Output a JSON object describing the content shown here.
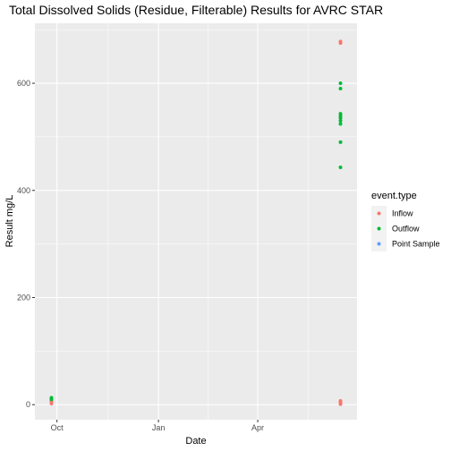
{
  "chart_data": {
    "type": "scatter",
    "title": "Total Dissolved Solids (Residue, Filterable) Results for AVRC STAR",
    "xlabel": "Date",
    "ylabel": "Result mg/L",
    "x_axis": {
      "kind": "date",
      "range": [
        "2020-09-11",
        "2021-06-30"
      ],
      "ticks": [
        {
          "date": "2020-10-01",
          "label": "Oct"
        },
        {
          "date": "2021-01-01",
          "label": "Jan"
        },
        {
          "date": "2021-04-01",
          "label": "Apr"
        }
      ]
    },
    "y_axis": {
      "range": [
        -28,
        712
      ],
      "ticks": [
        0,
        200,
        400,
        600
      ]
    },
    "grid": true,
    "legend": {
      "title": "event.type",
      "placement": "right",
      "entries": [
        {
          "name": "Inflow",
          "color": "#F8766D"
        },
        {
          "name": "Outflow",
          "color": "#00BA38"
        },
        {
          "name": "Point Sample",
          "color": "#619CFF"
        }
      ]
    },
    "series": [
      {
        "name": "Inflow",
        "color": "#F8766D",
        "points": [
          {
            "x": "2020-09-26",
            "y": 2
          },
          {
            "x": "2020-09-26",
            "y": 5
          },
          {
            "x": "2020-09-26",
            "y": 8
          },
          {
            "x": "2021-06-15",
            "y": 1
          },
          {
            "x": "2021-06-15",
            "y": 4
          },
          {
            "x": "2021-06-15",
            "y": 7
          },
          {
            "x": "2021-06-15",
            "y": 675
          },
          {
            "x": "2021-06-15",
            "y": 678
          }
        ]
      },
      {
        "name": "Outflow",
        "color": "#00BA38",
        "points": [
          {
            "x": "2020-09-26",
            "y": 10
          },
          {
            "x": "2020-09-26",
            "y": 13
          },
          {
            "x": "2021-06-15",
            "y": 600
          },
          {
            "x": "2021-06-15",
            "y": 590
          },
          {
            "x": "2021-06-15",
            "y": 543
          },
          {
            "x": "2021-06-15",
            "y": 539
          },
          {
            "x": "2021-06-15",
            "y": 535
          },
          {
            "x": "2021-06-15",
            "y": 530
          },
          {
            "x": "2021-06-15",
            "y": 524
          },
          {
            "x": "2021-06-15",
            "y": 490
          },
          {
            "x": "2021-06-15",
            "y": 443
          }
        ]
      },
      {
        "name": "Point Sample",
        "color": "#619CFF",
        "points": []
      }
    ]
  }
}
